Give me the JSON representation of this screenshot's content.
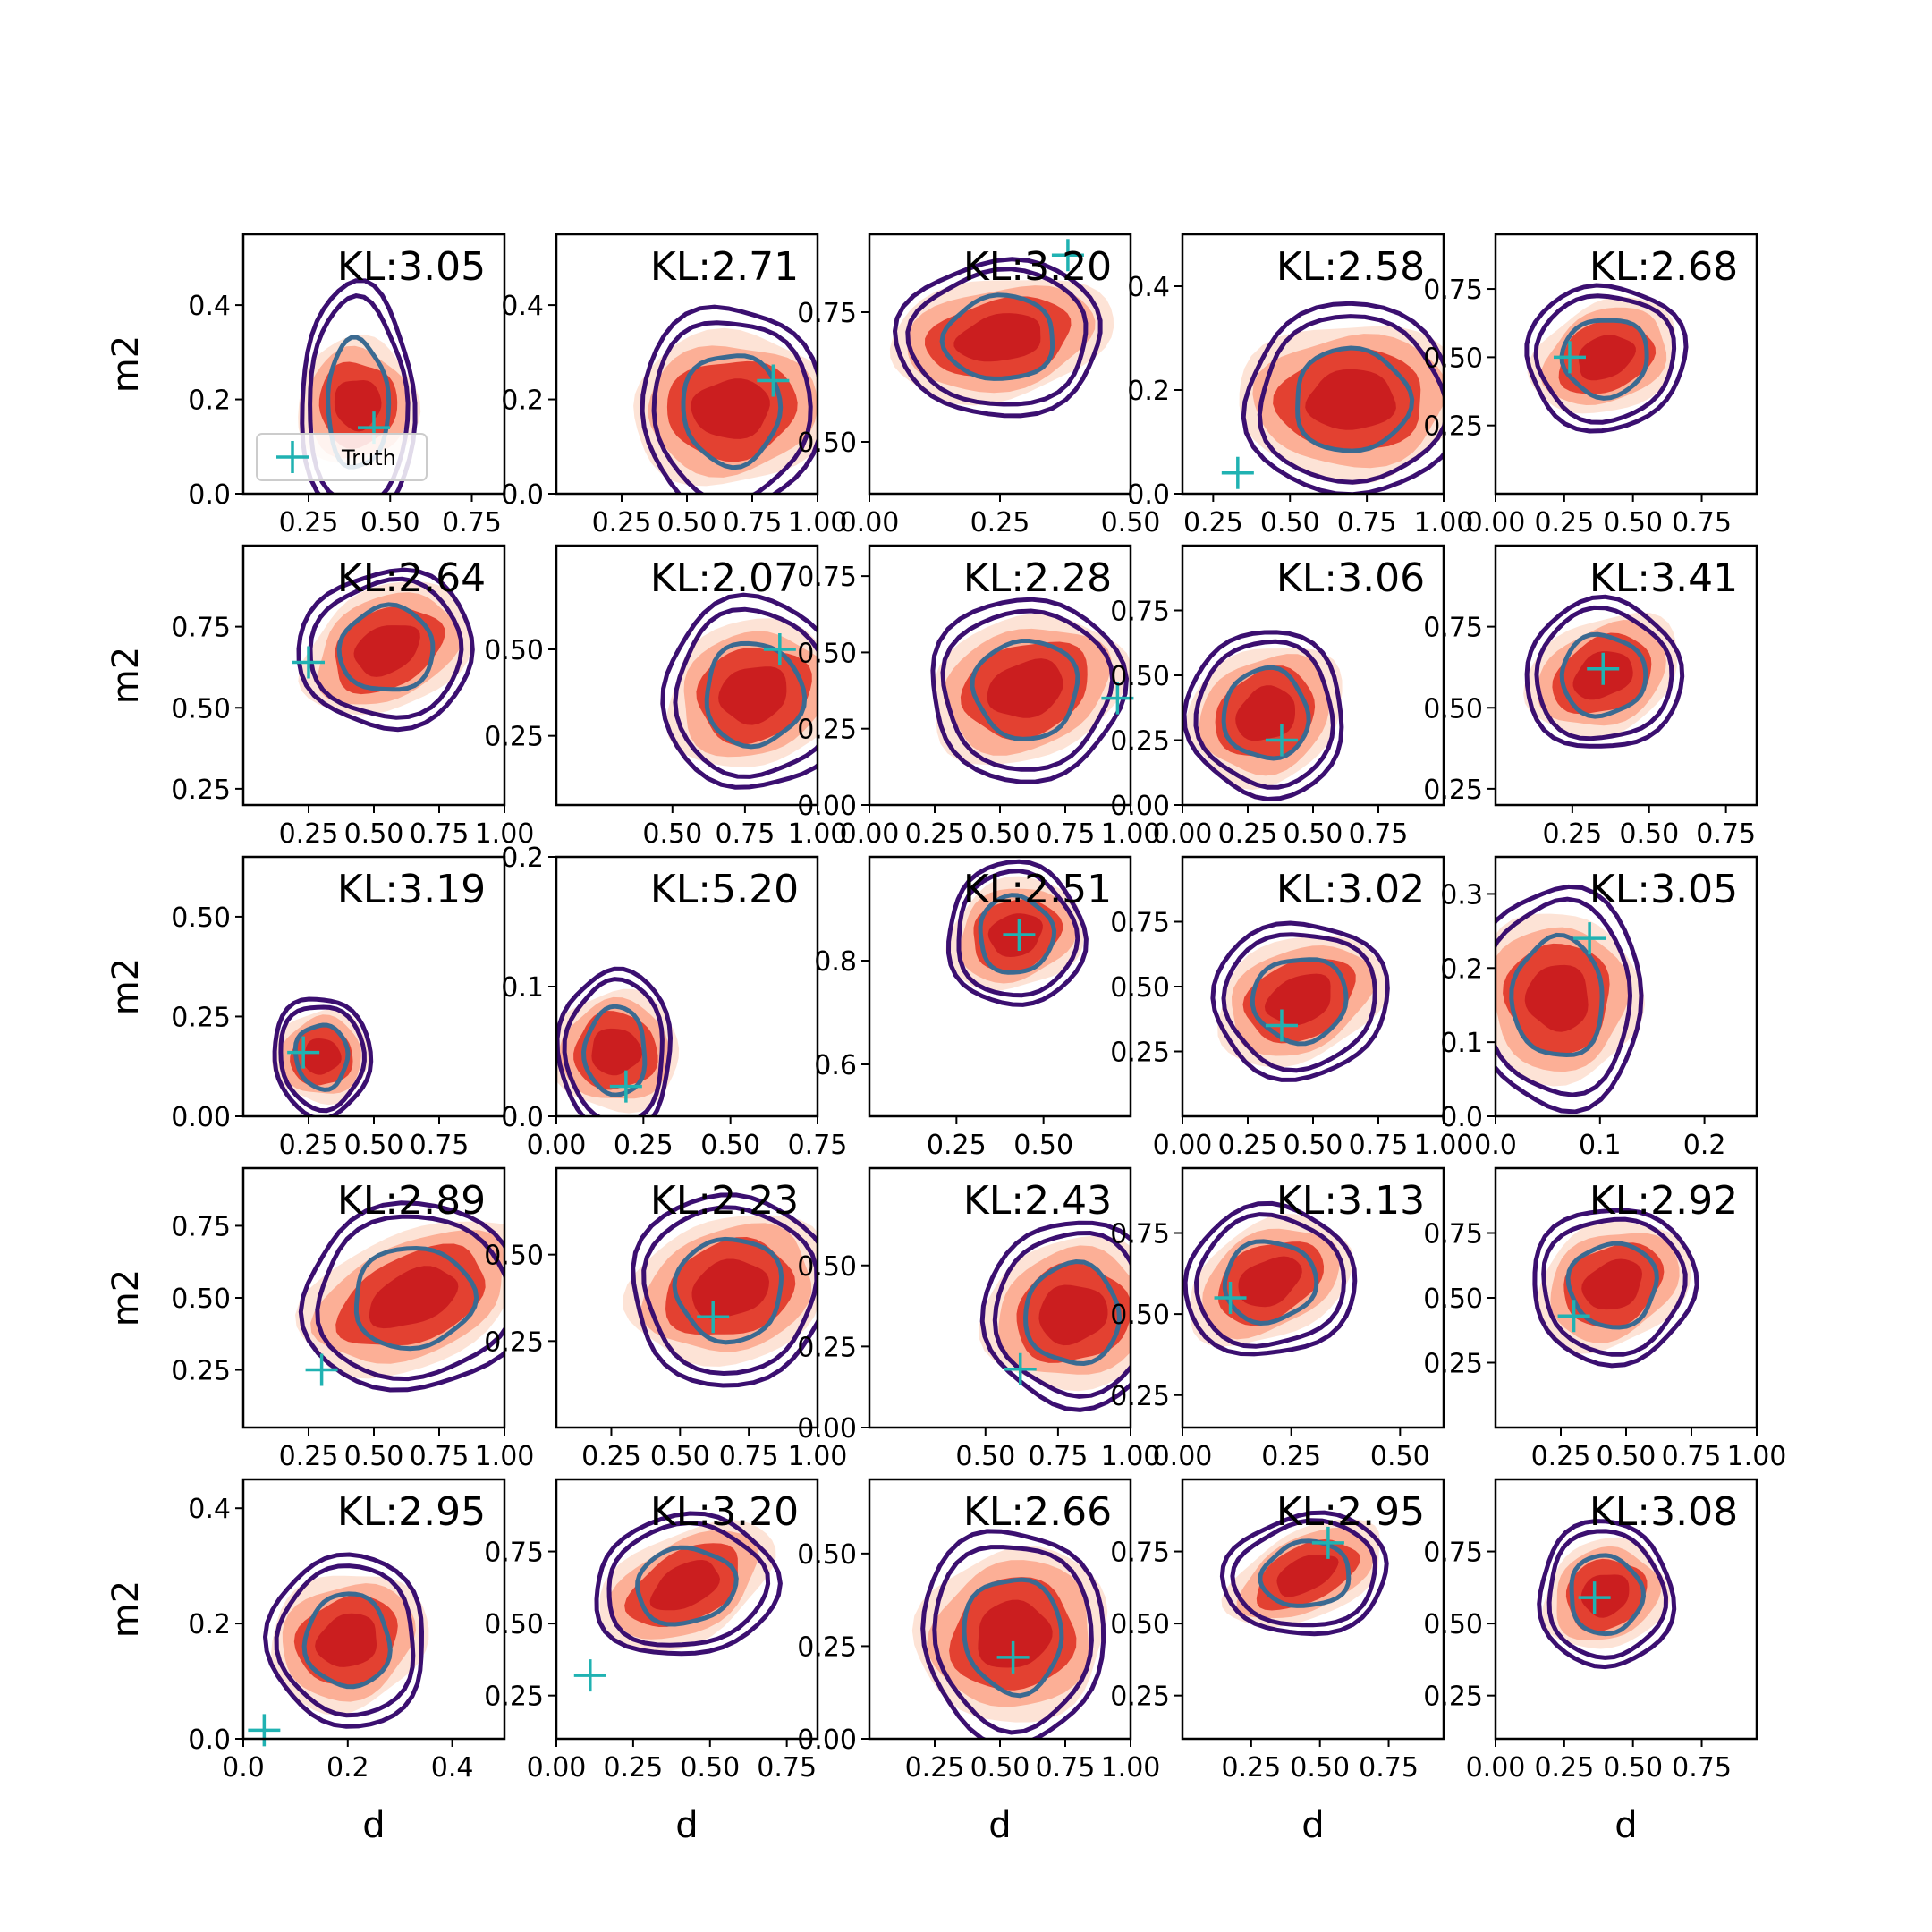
{
  "chart_data": {
    "type": "contour-grid",
    "rows": 5,
    "cols": 5,
    "xlabel": "d",
    "ylabel": "m2",
    "legend": {
      "label": "Truth",
      "placement": "lower-left of first panel"
    },
    "colors": {
      "filled_light": "#fde0d2",
      "filled_mid": "#fb9d80",
      "filled_dark": "#e23b2b",
      "filled_core": "#c91c1f",
      "contour_outer": "#3b0f70",
      "contour_inner": "#3b6a91",
      "truth": "#20b2b2"
    },
    "panels": [
      {
        "kl": "KL:3.05",
        "xlim": [
          0.05,
          0.85
        ],
        "ylim": [
          0,
          0.55
        ],
        "xticks": [
          "0.25",
          "0.50",
          "0.75"
        ],
        "xtv": [
          0.25,
          0.5,
          0.75
        ],
        "yticks": [
          "0.0",
          "0.2",
          "0.4"
        ],
        "ytv": [
          0,
          0.2,
          0.4
        ],
        "truth": [
          0.45,
          0.14
        ],
        "blob": [
          0.4,
          0.19,
          0.12,
          0.12,
          0.15,
          0.22,
          0.05
        ]
      },
      {
        "kl": "KL:2.71",
        "xlim": [
          0.0,
          1.0
        ],
        "ylim": [
          0,
          0.55
        ],
        "xticks": [
          "0.25",
          "0.50",
          "0.75",
          "1.00"
        ],
        "xtv": [
          0.25,
          0.5,
          0.75,
          1.0
        ],
        "yticks": [
          "0.0",
          "0.2",
          "0.4"
        ],
        "ytv": [
          0,
          0.2,
          0.4
        ],
        "truth": [
          0.83,
          0.24
        ],
        "blob": [
          0.67,
          0.18,
          0.25,
          0.14,
          0.3,
          0.19,
          0.1
        ]
      },
      {
        "kl": "KL:3.20",
        "xlim": [
          0.0,
          0.5
        ],
        "ylim": [
          0.4,
          0.9
        ],
        "xticks": [
          "0.00",
          "0.25",
          "0.50"
        ],
        "xtv": [
          0,
          0.25,
          0.5
        ],
        "yticks": [
          "0.50",
          "0.75"
        ],
        "ytv": [
          0.5,
          0.75
        ],
        "truth": [
          0.38,
          0.86
        ],
        "blob": [
          0.25,
          0.7,
          0.14,
          0.1,
          0.17,
          0.13,
          0.2
        ]
      },
      {
        "kl": "KL:2.58",
        "xlim": [
          0.15,
          1.0
        ],
        "ylim": [
          0,
          0.5
        ],
        "xticks": [
          "0.25",
          "0.50",
          "0.75",
          "1.00"
        ],
        "xtv": [
          0.25,
          0.5,
          0.75,
          1.0
        ],
        "yticks": [
          "0.0",
          "0.2",
          "0.4"
        ],
        "ytv": [
          0,
          0.2,
          0.4
        ],
        "truth": [
          0.33,
          0.04
        ],
        "blob": [
          0.7,
          0.18,
          0.24,
          0.13,
          0.3,
          0.16,
          0.05
        ]
      },
      {
        "kl": "KL:2.68",
        "xlim": [
          0.0,
          0.95
        ],
        "ylim": [
          0.0,
          0.95
        ],
        "xticks": [
          "0.00",
          "0.25",
          "0.50",
          "0.75"
        ],
        "xtv": [
          0,
          0.25,
          0.5,
          0.75
        ],
        "yticks": [
          "0.25",
          "0.50",
          "0.75"
        ],
        "ytv": [
          0.25,
          0.5,
          0.75
        ],
        "truth": [
          0.27,
          0.5
        ],
        "blob": [
          0.4,
          0.5,
          0.18,
          0.17,
          0.25,
          0.23,
          0.5
        ]
      },
      {
        "kl": "KL:2.64",
        "xlim": [
          0.0,
          1.0
        ],
        "ylim": [
          0.2,
          1.0
        ],
        "xticks": [
          "0.25",
          "0.50",
          "0.75",
          "1.00"
        ],
        "xtv": [
          0.25,
          0.5,
          0.75,
          1.0
        ],
        "yticks": [
          "0.25",
          "0.50",
          "0.75"
        ],
        "ytv": [
          0.25,
          0.5,
          0.75
        ],
        "truth": [
          0.25,
          0.64
        ],
        "blob": [
          0.55,
          0.68,
          0.22,
          0.16,
          0.29,
          0.21,
          0.55
        ]
      },
      {
        "kl": "KL:2.07",
        "xlim": [
          0.1,
          1.0
        ],
        "ylim": [
          0.05,
          0.8
        ],
        "xticks": [
          "0.50",
          "0.75",
          "1.00"
        ],
        "xtv": [
          0.5,
          0.75,
          1.0
        ],
        "yticks": [
          "0.25",
          "0.50"
        ],
        "ytv": [
          0.25,
          0.5
        ],
        "truth": [
          0.87,
          0.5
        ],
        "blob": [
          0.78,
          0.37,
          0.2,
          0.18,
          0.27,
          0.24,
          0.4
        ]
      },
      {
        "kl": "KL:2.28",
        "xlim": [
          0.0,
          1.0
        ],
        "ylim": [
          0.0,
          0.85
        ],
        "xticks": [
          "0.00",
          "0.25",
          "0.50",
          "0.75",
          "1.00"
        ],
        "xtv": [
          0,
          0.25,
          0.5,
          0.75,
          1.0
        ],
        "yticks": [
          "0.00",
          "0.25",
          "0.50",
          "0.75"
        ],
        "ytv": [
          0,
          0.25,
          0.5,
          0.75
        ],
        "truth": [
          0.95,
          0.35
        ],
        "blob": [
          0.6,
          0.38,
          0.25,
          0.2,
          0.32,
          0.26,
          0.4
        ]
      },
      {
        "kl": "KL:3.06",
        "xlim": [
          0.0,
          1.0
        ],
        "ylim": [
          0.0,
          1.0
        ],
        "xticks": [
          "0.00",
          "0.25",
          "0.50",
          "0.75"
        ],
        "xtv": [
          0,
          0.25,
          0.5,
          0.75
        ],
        "yticks": [
          "0.00",
          "0.25",
          "0.50",
          "0.75"
        ],
        "ytv": [
          0,
          0.25,
          0.5,
          0.75
        ],
        "truth": [
          0.38,
          0.25
        ],
        "blob": [
          0.32,
          0.35,
          0.2,
          0.22,
          0.26,
          0.28,
          0.7
        ]
      },
      {
        "kl": "KL:3.41",
        "xlim": [
          0.0,
          0.85
        ],
        "ylim": [
          0.2,
          1.0
        ],
        "xticks": [
          "0.25",
          "0.50",
          "0.75"
        ],
        "xtv": [
          0.25,
          0.5,
          0.75
        ],
        "yticks": [
          "0.25",
          "0.50",
          "0.75"
        ],
        "ytv": [
          0.25,
          0.5,
          0.75
        ],
        "truth": [
          0.35,
          0.62
        ],
        "blob": [
          0.35,
          0.6,
          0.17,
          0.15,
          0.22,
          0.2,
          0.55
        ]
      },
      {
        "kl": "KL:3.19",
        "xlim": [
          0.0,
          1.0
        ],
        "ylim": [
          0.0,
          0.65
        ],
        "xticks": [
          "0.25",
          "0.50",
          "0.75"
        ],
        "xtv": [
          0.25,
          0.5,
          0.75
        ],
        "yticks": [
          "0.00",
          "0.25",
          "0.50"
        ],
        "ytv": [
          0,
          0.25,
          0.5
        ],
        "truth": [
          0.23,
          0.16
        ],
        "blob": [
          0.3,
          0.15,
          0.12,
          0.1,
          0.16,
          0.13,
          0.35
        ]
      },
      {
        "kl": "KL:5.20",
        "xlim": [
          0.0,
          0.75
        ],
        "ylim": [
          0.0,
          0.2
        ],
        "xticks": [
          "0.00",
          "0.25",
          "0.50",
          "0.75"
        ],
        "xtv": [
          0,
          0.25,
          0.5,
          0.75
        ],
        "yticks": [
          "0.0",
          "0.1",
          "0.2"
        ],
        "ytv": [
          0,
          0.1,
          0.2
        ],
        "truth": [
          0.2,
          0.023
        ],
        "blob": [
          0.17,
          0.05,
          0.12,
          0.04,
          0.14,
          0.055,
          0.05
        ]
      },
      {
        "kl": "KL:2.51",
        "xlim": [
          0.0,
          0.75
        ],
        "ylim": [
          0.5,
          1.0
        ],
        "xticks": [
          "0.25",
          "0.50"
        ],
        "xtv": [
          0.25,
          0.5
        ],
        "yticks": [
          "0.6",
          "0.8"
        ],
        "ytv": [
          0.6,
          0.8
        ],
        "truth": [
          0.43,
          0.85
        ],
        "blob": [
          0.42,
          0.85,
          0.13,
          0.09,
          0.17,
          0.12,
          0.4
        ]
      },
      {
        "kl": "KL:3.02",
        "xlim": [
          0.0,
          1.0
        ],
        "ylim": [
          0.0,
          1.0
        ],
        "xticks": [
          "0.00",
          "0.25",
          "0.50",
          "0.75",
          "1.00"
        ],
        "xtv": [
          0,
          0.25,
          0.5,
          0.75,
          1.0
        ],
        "yticks": [
          "0.25",
          "0.50",
          "0.75"
        ],
        "ytv": [
          0.25,
          0.5,
          0.75
        ],
        "truth": [
          0.38,
          0.35
        ],
        "blob": [
          0.45,
          0.45,
          0.22,
          0.2,
          0.29,
          0.26,
          0.5
        ]
      },
      {
        "kl": "KL:3.05",
        "xlim": [
          0.0,
          0.25
        ],
        "ylim": [
          0.0,
          0.35
        ],
        "xticks": [
          "0.0",
          "0.1",
          "0.2"
        ],
        "xtv": [
          0,
          0.1,
          0.2
        ],
        "yticks": [
          "0.0",
          "0.1",
          "0.2",
          "0.3"
        ],
        "ytv": [
          0,
          0.1,
          0.2,
          0.3
        ],
        "truth": [
          0.09,
          0.24
        ],
        "blob": [
          0.06,
          0.16,
          0.05,
          0.1,
          0.07,
          0.13,
          0.1
        ]
      },
      {
        "kl": "KL:2.89",
        "xlim": [
          0.0,
          1.0
        ],
        "ylim": [
          0.05,
          0.95
        ],
        "xticks": [
          "0.25",
          "0.50",
          "0.75",
          "1.00"
        ],
        "xtv": [
          0.25,
          0.5,
          0.75,
          1.0
        ],
        "yticks": [
          "0.25",
          "0.50",
          "0.75"
        ],
        "ytv": [
          0.25,
          0.5,
          0.75
        ],
        "truth": [
          0.3,
          0.25
        ],
        "blob": [
          0.65,
          0.5,
          0.3,
          0.2,
          0.37,
          0.28,
          0.5
        ]
      },
      {
        "kl": "KL:2.23",
        "xlim": [
          0.05,
          1.0
        ],
        "ylim": [
          0.0,
          0.75
        ],
        "xticks": [
          "0.25",
          "0.50",
          "0.75",
          "1.00"
        ],
        "xtv": [
          0.25,
          0.5,
          0.75,
          1.0
        ],
        "yticks": [
          "0.25",
          "0.50"
        ],
        "ytv": [
          0.25,
          0.5
        ],
        "truth": [
          0.62,
          0.32
        ],
        "blob": [
          0.68,
          0.4,
          0.24,
          0.18,
          0.31,
          0.24,
          0.35
        ]
      },
      {
        "kl": "KL:2.43",
        "xlim": [
          0.1,
          1.0
        ],
        "ylim": [
          0.0,
          0.8
        ],
        "xticks": [
          "0.50",
          "0.75",
          "1.00"
        ],
        "xtv": [
          0.5,
          0.75,
          1.0
        ],
        "yticks": [
          "0.00",
          "0.25",
          "0.50"
        ],
        "ytv": [
          0,
          0.25,
          0.5
        ],
        "truth": [
          0.62,
          0.18
        ],
        "blob": [
          0.8,
          0.35,
          0.2,
          0.2,
          0.26,
          0.25,
          0.3
        ]
      },
      {
        "kl": "KL:3.13",
        "xlim": [
          0.0,
          0.6
        ],
        "ylim": [
          0.15,
          0.95
        ],
        "xticks": [
          "0.00",
          "0.25",
          "0.50"
        ],
        "xtv": [
          0,
          0.25,
          0.5
        ],
        "yticks": [
          "0.25",
          "0.50",
          "0.75"
        ],
        "ytv": [
          0.25,
          0.5,
          0.75
        ],
        "truth": [
          0.11,
          0.55
        ],
        "blob": [
          0.2,
          0.6,
          0.13,
          0.15,
          0.17,
          0.2,
          0.6
        ]
      },
      {
        "kl": "KL:2.92",
        "xlim": [
          0.0,
          1.0
        ],
        "ylim": [
          0.0,
          1.0
        ],
        "xticks": [
          "0.25",
          "0.50",
          "0.75",
          "1.00"
        ],
        "xtv": [
          0.25,
          0.5,
          0.75,
          1.0
        ],
        "yticks": [
          "0.25",
          "0.50",
          "0.75"
        ],
        "ytv": [
          0.25,
          0.5,
          0.75
        ],
        "truth": [
          0.3,
          0.43
        ],
        "blob": [
          0.45,
          0.55,
          0.2,
          0.2,
          0.27,
          0.26,
          0.6
        ]
      },
      {
        "kl": "KL:2.95",
        "xlim": [
          0.0,
          0.5
        ],
        "ylim": [
          0.0,
          0.45
        ],
        "xticks": [
          "0.0",
          "0.2",
          "0.4"
        ],
        "xtv": [
          0,
          0.2,
          0.4
        ],
        "yticks": [
          "0.0",
          "0.2",
          "0.4"
        ],
        "ytv": [
          0,
          0.2,
          0.4
        ],
        "truth": [
          0.04,
          0.015
        ],
        "blob": [
          0.2,
          0.17,
          0.1,
          0.1,
          0.13,
          0.13,
          0.5
        ]
      },
      {
        "kl": "KL:3.20",
        "xlim": [
          0.0,
          0.85
        ],
        "ylim": [
          0.1,
          1.0
        ],
        "xticks": [
          "0.00",
          "0.25",
          "0.50",
          "0.75"
        ],
        "xtv": [
          0,
          0.25,
          0.5,
          0.75
        ],
        "yticks": [
          "0.25",
          "0.50",
          "0.75"
        ],
        "ytv": [
          0.25,
          0.5,
          0.75
        ],
        "truth": [
          0.11,
          0.32
        ],
        "blob": [
          0.42,
          0.63,
          0.2,
          0.16,
          0.26,
          0.21,
          0.6
        ]
      },
      {
        "kl": "KL:2.66",
        "xlim": [
          0.0,
          1.0
        ],
        "ylim": [
          0.0,
          0.7
        ],
        "xticks": [
          "0.25",
          "0.50",
          "0.75",
          "1.00"
        ],
        "xtv": [
          0.25,
          0.5,
          0.75,
          1.0
        ],
        "yticks": [
          "0.00",
          "0.25",
          "0.50"
        ],
        "ytv": [
          0,
          0.25,
          0.5
        ],
        "truth": [
          0.55,
          0.22
        ],
        "blob": [
          0.55,
          0.28,
          0.24,
          0.2,
          0.3,
          0.25,
          0.45
        ]
      },
      {
        "kl": "KL:2.95",
        "xlim": [
          0.0,
          0.95
        ],
        "ylim": [
          0.1,
          1.0
        ],
        "xticks": [
          "0.25",
          "0.50",
          "0.75"
        ],
        "xtv": [
          0.25,
          0.5,
          0.75
        ],
        "yticks": [
          "0.25",
          "0.50",
          "0.75"
        ],
        "ytv": [
          0.25,
          0.5,
          0.75
        ],
        "truth": [
          0.53,
          0.78
        ],
        "blob": [
          0.45,
          0.67,
          0.2,
          0.13,
          0.26,
          0.18,
          0.55
        ]
      },
      {
        "kl": "KL:3.08",
        "xlim": [
          0.0,
          0.95
        ],
        "ylim": [
          0.1,
          1.0
        ],
        "xticks": [
          "0.00",
          "0.25",
          "0.50",
          "0.75"
        ],
        "xtv": [
          0,
          0.25,
          0.5,
          0.75
        ],
        "yticks": [
          "0.25",
          "0.50",
          "0.75"
        ],
        "ytv": [
          0.25,
          0.5,
          0.75
        ],
        "truth": [
          0.36,
          0.59
        ],
        "blob": [
          0.4,
          0.6,
          0.15,
          0.16,
          0.21,
          0.22,
          0.55
        ]
      }
    ]
  }
}
